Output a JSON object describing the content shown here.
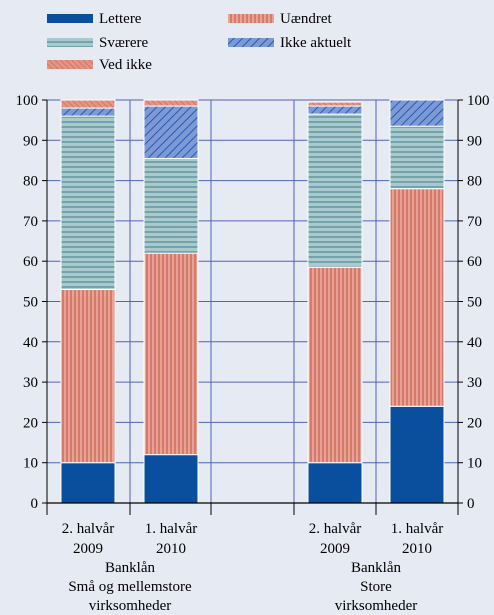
{
  "chart_data": {
    "type": "bar",
    "stacked": true,
    "legend": [
      "Lettere",
      "Uændret",
      "Sværere",
      "Ikke aktuelt",
      "Ved ikke"
    ],
    "legend_placement": "top",
    "categories": [
      {
        "line1": "2. halvår",
        "line2": "2009",
        "group": 0
      },
      {
        "line1": "1. halvår",
        "line2": "2010",
        "group": 0
      },
      {
        "line1": "2. halvår",
        "line2": "2009",
        "group": 1
      },
      {
        "line1": "1. halvår",
        "line2": "2010",
        "group": 1
      }
    ],
    "groups": [
      {
        "line1": "Banklån",
        "line2": "Små og mellemstore",
        "line3": "virksomheder"
      },
      {
        "line1": "Banklån",
        "line2": "Store",
        "line3": "virksomheder"
      }
    ],
    "series": [
      {
        "name": "Lettere",
        "values": [
          10,
          12,
          10,
          24
        ],
        "color": "#0a4f9e"
      },
      {
        "name": "Uændret",
        "values": [
          43,
          50,
          48.5,
          54
        ],
        "color": "#d9796a"
      },
      {
        "name": "Sværere",
        "values": [
          43,
          23.5,
          38,
          15.5
        ],
        "color": "#6fa5ad"
      },
      {
        "name": "Ikke aktuelt",
        "values": [
          2,
          13,
          2,
          6.5
        ],
        "color": "#4f7ac9"
      },
      {
        "name": "Ved ikke",
        "values": [
          2,
          1.5,
          1,
          0
        ],
        "color": "#d9796a"
      }
    ],
    "ylim": [
      0,
      100
    ],
    "yticks": [
      "0",
      "10",
      "20",
      "30",
      "40",
      "50",
      "60",
      "70",
      "80",
      "90",
      "100"
    ],
    "grid": true,
    "xlabel": "",
    "ylabel": ""
  }
}
